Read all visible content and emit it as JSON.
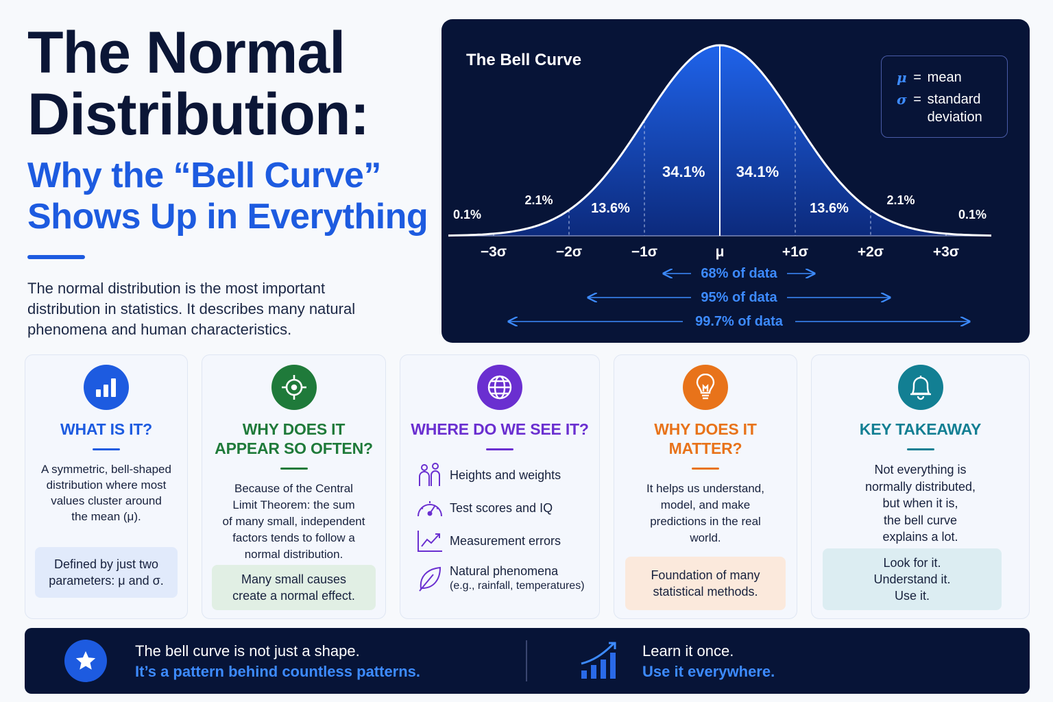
{
  "header": {
    "title_line1": "The Normal",
    "title_line2": "Distribution:",
    "subtitle_line1": "Why the “Bell Curve”",
    "subtitle_line2": "Shows Up in Everything",
    "intro": "The normal distribution is the most important distribution in statistics. It describes many natural phenomena and human characteristics."
  },
  "chart": {
    "title": "The Bell Curve",
    "legend": [
      {
        "symbol": "μ",
        "text": "mean"
      },
      {
        "symbol": "σ",
        "text": "standard deviation"
      }
    ]
  },
  "chart_data": {
    "type": "area",
    "title": "The Bell Curve",
    "x_ticks": [
      "−3σ",
      "−2σ",
      "−1σ",
      "μ",
      "+1σ",
      "+2σ",
      "+3σ"
    ],
    "xlim": [
      -3.6,
      3.6
    ],
    "segments": [
      {
        "range": [
          -4,
          -3
        ],
        "label": "0.1%",
        "value": 0.1
      },
      {
        "range": [
          -3,
          -2
        ],
        "label": "2.1%",
        "value": 2.1
      },
      {
        "range": [
          -2,
          -1
        ],
        "label": "13.6%",
        "value": 13.6
      },
      {
        "range": [
          -1,
          0
        ],
        "label": "34.1%",
        "value": 34.1
      },
      {
        "range": [
          0,
          1
        ],
        "label": "34.1%",
        "value": 34.1
      },
      {
        "range": [
          1,
          2
        ],
        "label": "13.6%",
        "value": 13.6
      },
      {
        "range": [
          2,
          3
        ],
        "label": "2.1%",
        "value": 2.1
      },
      {
        "range": [
          3,
          4
        ],
        "label": "0.1%",
        "value": 0.1
      }
    ],
    "ranges": [
      {
        "sigma": 1,
        "label": "68% of data"
      },
      {
        "sigma": 2,
        "label": "95% of data"
      },
      {
        "sigma": 3,
        "label": "99.7% of data"
      }
    ],
    "colors": {
      "curve_fill": "#1d5be0",
      "curve_line": "#ffffff",
      "arrow": "#3d8bff"
    }
  },
  "cards": [
    {
      "icon": "bar-chart-icon",
      "color": "#1d5be0",
      "title": "WHAT IS IT?",
      "body_lines": [
        "A symmetric, bell-shaped",
        "distribution where most",
        "values cluster around",
        "the mean (μ)."
      ],
      "note_lines": [
        "Defined by just two",
        "parameters: μ and σ."
      ],
      "note_bg": "#e1eafb"
    },
    {
      "icon": "target-icon",
      "color": "#1f7a3a",
      "title_lines": [
        "WHY DOES IT",
        "APPEAR SO OFTEN?"
      ],
      "body_lines": [
        "Because of the Central",
        "Limit Theorem: the sum",
        "of many small, independent",
        "factors tends to follow a",
        "normal distribution."
      ],
      "note_lines": [
        "Many small causes",
        "create a normal effect."
      ],
      "note_bg": "#e1efe4"
    },
    {
      "icon": "globe-icon",
      "color": "#6a2fd0",
      "title": "WHERE DO WE SEE IT?",
      "items": [
        {
          "icon": "people-icon",
          "text": "Heights and weights"
        },
        {
          "icon": "gauge-icon",
          "text": "Test scores and IQ"
        },
        {
          "icon": "trend-chart-icon",
          "text": "Measurement errors"
        },
        {
          "icon": "leaf-icon",
          "text": "Natural phenomena",
          "sub": "(e.g., rainfall, temperatures)"
        }
      ]
    },
    {
      "icon": "lightbulb-icon",
      "color": "#e8731a",
      "title_lines": [
        "WHY DOES IT",
        "MATTER?"
      ],
      "body_lines": [
        "It helps us understand,",
        "model, and make",
        "predictions in the real",
        "world."
      ],
      "note_lines": [
        "Foundation of many",
        "statistical methods."
      ],
      "note_bg": "#fbe9dc"
    },
    {
      "icon": "bell-icon",
      "color": "#127f93",
      "title": "KEY TAKEAWAY",
      "body_lines": [
        "Not everything is",
        "normally distributed,",
        "but when it is,",
        "the bell curve",
        "explains a lot."
      ],
      "note_lines": [
        "Look for it.",
        "Understand it.",
        "Use it."
      ],
      "note_bg": "#dcedf2"
    }
  ],
  "banner": {
    "left_line1": "The bell curve is not just a shape.",
    "left_line2": "It’s a pattern behind countless patterns.",
    "right_line1": "Learn it once.",
    "right_line2": "Use it everywhere."
  }
}
